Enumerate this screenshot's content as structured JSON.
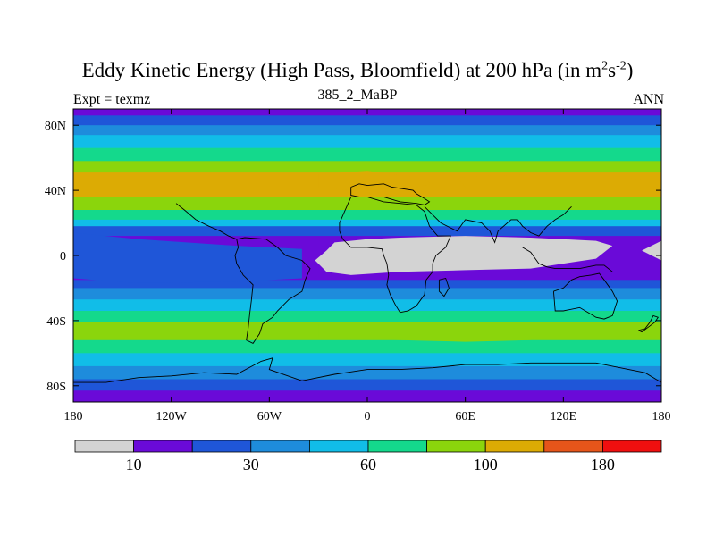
{
  "header": {
    "title_main": "Eddy Kinetic Energy (High Pass, Bloomfield) at 200 hPa (in m",
    "title_sup1": "2",
    "title_mid": "s",
    "title_sup2": "-2",
    "title_end": ")",
    "subtitle": "385_2_MaBP",
    "left_label": "Expt = texmz",
    "right_label": "ANN"
  },
  "colors": {
    "palette": [
      "#d3d3d3",
      "#6a0ad8",
      "#1f56d8",
      "#1e8cdc",
      "#11bde8",
      "#14d98c",
      "#8bd50c",
      "#dcab04",
      "#e6551a",
      "#f00f0f"
    ],
    "coastline": "#000000"
  },
  "chart_data": {
    "type": "heatmap",
    "title": "Eddy Kinetic Energy (High Pass, Bloomfield) at 200 hPa (in m^2 s^-2)",
    "xlim": [
      -180,
      180
    ],
    "ylim": [
      -90,
      90
    ],
    "xticks": [
      {
        "value": -180,
        "label": "180"
      },
      {
        "value": -120,
        "label": "120W"
      },
      {
        "value": -60,
        "label": "60W"
      },
      {
        "value": 0,
        "label": "0"
      },
      {
        "value": 60,
        "label": "60E"
      },
      {
        "value": 120,
        "label": "120E"
      },
      {
        "value": 180,
        "label": "180"
      }
    ],
    "yticks": [
      {
        "value": 80,
        "label": "80N"
      },
      {
        "value": 40,
        "label": "40N"
      },
      {
        "value": 0,
        "label": "0"
      },
      {
        "value": -40,
        "label": "40S"
      },
      {
        "value": -80,
        "label": "80S"
      }
    ],
    "colorbar": {
      "levels": [
        10,
        20,
        30,
        45,
        60,
        80,
        100,
        140,
        180
      ],
      "labeled": [
        {
          "index": 1,
          "label": "10"
        },
        {
          "index": 3,
          "label": "30"
        },
        {
          "index": 5,
          "label": "60"
        },
        {
          "index": 7,
          "label": "100"
        },
        {
          "index": 9,
          "label": "180"
        }
      ]
    },
    "zonal_bands": [
      {
        "lat_from": 90,
        "lat_to": 86,
        "class": 1
      },
      {
        "lat_from": 86,
        "lat_to": 80,
        "class": 2
      },
      {
        "lat_from": 80,
        "lat_to": 74,
        "class": 3
      },
      {
        "lat_from": 74,
        "lat_to": 66,
        "class": 4
      },
      {
        "lat_from": 66,
        "lat_to": 58,
        "class": 5
      },
      {
        "lat_from": 58,
        "lat_to": 51,
        "class": 6
      },
      {
        "lat_from": 51,
        "lat_to": 43,
        "class": 7
      },
      {
        "lat_from": 43,
        "lat_to": 36,
        "class": 7
      },
      {
        "lat_from": 36,
        "lat_to": 28,
        "class": 6
      },
      {
        "lat_from": 28,
        "lat_to": 22,
        "class": 5
      },
      {
        "lat_from": 22,
        "lat_to": 18,
        "class": 4
      },
      {
        "lat_from": 18,
        "lat_to": 12,
        "class": 2
      },
      {
        "lat_from": 12,
        "lat_to": -15,
        "class": 1
      },
      {
        "lat_from": -15,
        "lat_to": -20,
        "class": 2
      },
      {
        "lat_from": -20,
        "lat_to": -27,
        "class": 3
      },
      {
        "lat_from": -27,
        "lat_to": -34,
        "class": 4
      },
      {
        "lat_from": -34,
        "lat_to": -41,
        "class": 5
      },
      {
        "lat_from": -41,
        "lat_to": -52,
        "class": 6
      },
      {
        "lat_from": -52,
        "lat_to": -60,
        "class": 5
      },
      {
        "lat_from": -60,
        "lat_to": -68,
        "class": 4
      },
      {
        "lat_from": -68,
        "lat_to": -76,
        "class": 3
      },
      {
        "lat_from": -76,
        "lat_to": -83,
        "class": 2
      },
      {
        "lat_from": -83,
        "lat_to": -90,
        "class": 1
      }
    ],
    "anomalies": [
      {
        "name": "tropical-low-region",
        "class": 0,
        "points": [
          [
            -25,
            3
          ],
          [
            -20,
            8
          ],
          [
            0,
            10
          ],
          [
            20,
            11
          ],
          [
            60,
            12
          ],
          [
            100,
            11
          ],
          [
            140,
            9
          ],
          [
            150,
            6
          ],
          [
            140,
            -2
          ],
          [
            100,
            -8
          ],
          [
            60,
            -9
          ],
          [
            20,
            -10
          ],
          [
            -10,
            -12
          ],
          [
            -25,
            -10
          ],
          [
            -32,
            -3
          ]
        ]
      },
      {
        "name": "west-pacific-low-edge",
        "class": 0,
        "points": [
          [
            -180,
            6
          ],
          [
            -174,
            2
          ],
          [
            -180,
            -2
          ]
        ]
      },
      {
        "name": "east-pacific-low-edge",
        "class": 0,
        "points": [
          [
            180,
            9
          ],
          [
            168,
            3
          ],
          [
            180,
            -3
          ]
        ]
      },
      {
        "name": "pacific-low-tongue",
        "class": 2,
        "points": [
          [
            -180,
            14
          ],
          [
            -140,
            10
          ],
          [
            -80,
            6
          ],
          [
            -40,
            4
          ],
          [
            -40,
            -14
          ],
          [
            -80,
            -16
          ],
          [
            -140,
            -17
          ],
          [
            -180,
            -14
          ]
        ]
      },
      {
        "name": "atlantic-jet-peak",
        "class": 7,
        "points": [
          [
            -30,
            50
          ],
          [
            0,
            52
          ],
          [
            30,
            48
          ],
          [
            40,
            44
          ],
          [
            20,
            40
          ],
          [
            -10,
            40
          ],
          [
            -30,
            42
          ]
        ]
      },
      {
        "name": "pacific-jet-peak",
        "class": 7,
        "points": [
          [
            55,
            48
          ],
          [
            100,
            50
          ],
          [
            150,
            48
          ],
          [
            180,
            46
          ],
          [
            180,
            38
          ],
          [
            150,
            36
          ],
          [
            100,
            38
          ],
          [
            60,
            42
          ]
        ]
      },
      {
        "name": "indian-ocean-peak",
        "class": 6,
        "points": [
          [
            -30,
            -42
          ],
          [
            20,
            -42
          ],
          [
            60,
            -43
          ],
          [
            100,
            -45
          ],
          [
            100,
            -52
          ],
          [
            60,
            -53
          ],
          [
            20,
            -52
          ],
          [
            -30,
            -50
          ]
        ]
      }
    ],
    "coastlines": [
      {
        "name": "europe-mediterranean",
        "points": [
          [
            -10,
            42
          ],
          [
            -5,
            44
          ],
          [
            0,
            43
          ],
          [
            10,
            44
          ],
          [
            15,
            42
          ],
          [
            28,
            40
          ],
          [
            30,
            38
          ],
          [
            35,
            35
          ],
          [
            38,
            33
          ],
          [
            35,
            31
          ],
          [
            30,
            32
          ],
          [
            20,
            33
          ],
          [
            10,
            36
          ],
          [
            0,
            36
          ],
          [
            -5,
            36
          ],
          [
            -10,
            37
          ],
          [
            -10,
            42
          ]
        ]
      },
      {
        "name": "arabia-india",
        "points": [
          [
            35,
            30
          ],
          [
            40,
            25
          ],
          [
            45,
            20
          ],
          [
            55,
            15
          ],
          [
            60,
            22
          ],
          [
            70,
            20
          ],
          [
            75,
            15
          ],
          [
            78,
            8
          ],
          [
            80,
            15
          ],
          [
            88,
            22
          ],
          [
            92,
            22
          ],
          [
            95,
            18
          ],
          [
            100,
            14
          ],
          [
            105,
            12
          ],
          [
            110,
            18
          ],
          [
            115,
            22
          ],
          [
            120,
            25
          ],
          [
            125,
            30
          ]
        ]
      },
      {
        "name": "africa",
        "points": [
          [
            -17,
            15
          ],
          [
            -15,
            10
          ],
          [
            -10,
            5
          ],
          [
            0,
            5
          ],
          [
            9,
            4
          ],
          [
            10,
            0
          ],
          [
            12,
            -5
          ],
          [
            13,
            -12
          ],
          [
            12,
            -18
          ],
          [
            14,
            -24
          ],
          [
            17,
            -30
          ],
          [
            20,
            -35
          ],
          [
            25,
            -34
          ],
          [
            30,
            -31
          ],
          [
            35,
            -24
          ],
          [
            36,
            -15
          ],
          [
            40,
            -10
          ],
          [
            40,
            -5
          ],
          [
            42,
            0
          ],
          [
            48,
            5
          ],
          [
            51,
            12
          ],
          [
            43,
            12
          ],
          [
            38,
            18
          ],
          [
            35,
            27
          ],
          [
            30,
            31
          ],
          [
            20,
            32
          ],
          [
            10,
            33
          ],
          [
            0,
            36
          ],
          [
            -10,
            36
          ],
          [
            -17,
            20
          ],
          [
            -17,
            15
          ]
        ]
      },
      {
        "name": "madagascar",
        "points": [
          [
            44,
            -15
          ],
          [
            48,
            -14
          ],
          [
            50,
            -20
          ],
          [
            47,
            -25
          ],
          [
            44,
            -22
          ],
          [
            44,
            -15
          ]
        ]
      },
      {
        "name": "south-america",
        "points": [
          [
            -80,
            10
          ],
          [
            -75,
            11
          ],
          [
            -62,
            10
          ],
          [
            -55,
            5
          ],
          [
            -50,
            0
          ],
          [
            -40,
            -3
          ],
          [
            -35,
            -8
          ],
          [
            -38,
            -15
          ],
          [
            -40,
            -22
          ],
          [
            -48,
            -27
          ],
          [
            -55,
            -34
          ],
          [
            -58,
            -38
          ],
          [
            -64,
            -42
          ],
          [
            -66,
            -48
          ],
          [
            -70,
            -54
          ],
          [
            -74,
            -52
          ],
          [
            -73,
            -45
          ],
          [
            -72,
            -36
          ],
          [
            -71,
            -28
          ],
          [
            -70,
            -18
          ],
          [
            -76,
            -12
          ],
          [
            -80,
            -5
          ],
          [
            -81,
            0
          ],
          [
            -79,
            5
          ],
          [
            -80,
            10
          ]
        ]
      },
      {
        "name": "central-america",
        "points": [
          [
            -80,
            10
          ],
          [
            -85,
            12
          ],
          [
            -90,
            15
          ],
          [
            -97,
            18
          ],
          [
            -105,
            22
          ],
          [
            -112,
            28
          ],
          [
            -117,
            32
          ]
        ]
      },
      {
        "name": "indonesia",
        "points": [
          [
            95,
            5
          ],
          [
            100,
            2
          ],
          [
            105,
            -5
          ],
          [
            110,
            -7
          ],
          [
            115,
            -8
          ],
          [
            120,
            -8
          ],
          [
            130,
            -8
          ],
          [
            140,
            -6
          ],
          [
            145,
            -6
          ],
          [
            150,
            -10
          ]
        ]
      },
      {
        "name": "australia",
        "points": [
          [
            114,
            -22
          ],
          [
            115,
            -34
          ],
          [
            120,
            -34
          ],
          [
            130,
            -32
          ],
          [
            135,
            -35
          ],
          [
            140,
            -38
          ],
          [
            145,
            -39
          ],
          [
            150,
            -37
          ],
          [
            153,
            -28
          ],
          [
            150,
            -22
          ],
          [
            145,
            -15
          ],
          [
            142,
            -11
          ],
          [
            137,
            -12
          ],
          [
            130,
            -13
          ],
          [
            125,
            -15
          ],
          [
            120,
            -20
          ],
          [
            114,
            -22
          ]
        ]
      },
      {
        "name": "new-zealand",
        "points": [
          [
            166,
            -46
          ],
          [
            170,
            -45
          ],
          [
            173,
            -41
          ],
          [
            175,
            -37
          ],
          [
            178,
            -38
          ],
          [
            176,
            -41
          ],
          [
            172,
            -44
          ],
          [
            168,
            -47
          ],
          [
            166,
            -46
          ]
        ]
      },
      {
        "name": "antarctica",
        "points": [
          [
            -180,
            -78
          ],
          [
            -160,
            -78
          ],
          [
            -140,
            -75
          ],
          [
            -120,
            -74
          ],
          [
            -100,
            -72
          ],
          [
            -80,
            -73
          ],
          [
            -65,
            -65
          ],
          [
            -58,
            -63
          ],
          [
            -60,
            -70
          ],
          [
            -40,
            -77
          ],
          [
            -20,
            -73
          ],
          [
            0,
            -70
          ],
          [
            20,
            -70
          ],
          [
            40,
            -69
          ],
          [
            60,
            -67
          ],
          [
            80,
            -67
          ],
          [
            100,
            -66
          ],
          [
            120,
            -66
          ],
          [
            140,
            -66
          ],
          [
            160,
            -70
          ],
          [
            170,
            -72
          ],
          [
            180,
            -78
          ]
        ]
      }
    ]
  }
}
